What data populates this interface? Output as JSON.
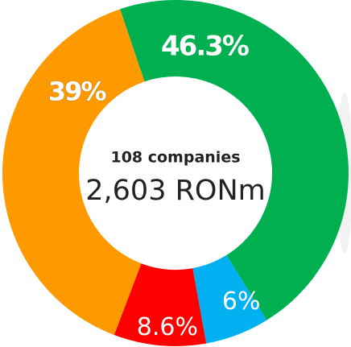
{
  "chart_data": {
    "type": "donut",
    "center_title": "108 companies",
    "center_value": "2,603 RONm",
    "categories": [
      null,
      null,
      null,
      null
    ],
    "values": [
      46.3,
      6,
      8.6,
      39
    ],
    "value_labels": [
      "46.3%",
      "6%",
      "8.6%",
      "39%"
    ],
    "colors": [
      "#00b050",
      "#00b0f0",
      "#ff0000",
      "#ff9900"
    ]
  }
}
